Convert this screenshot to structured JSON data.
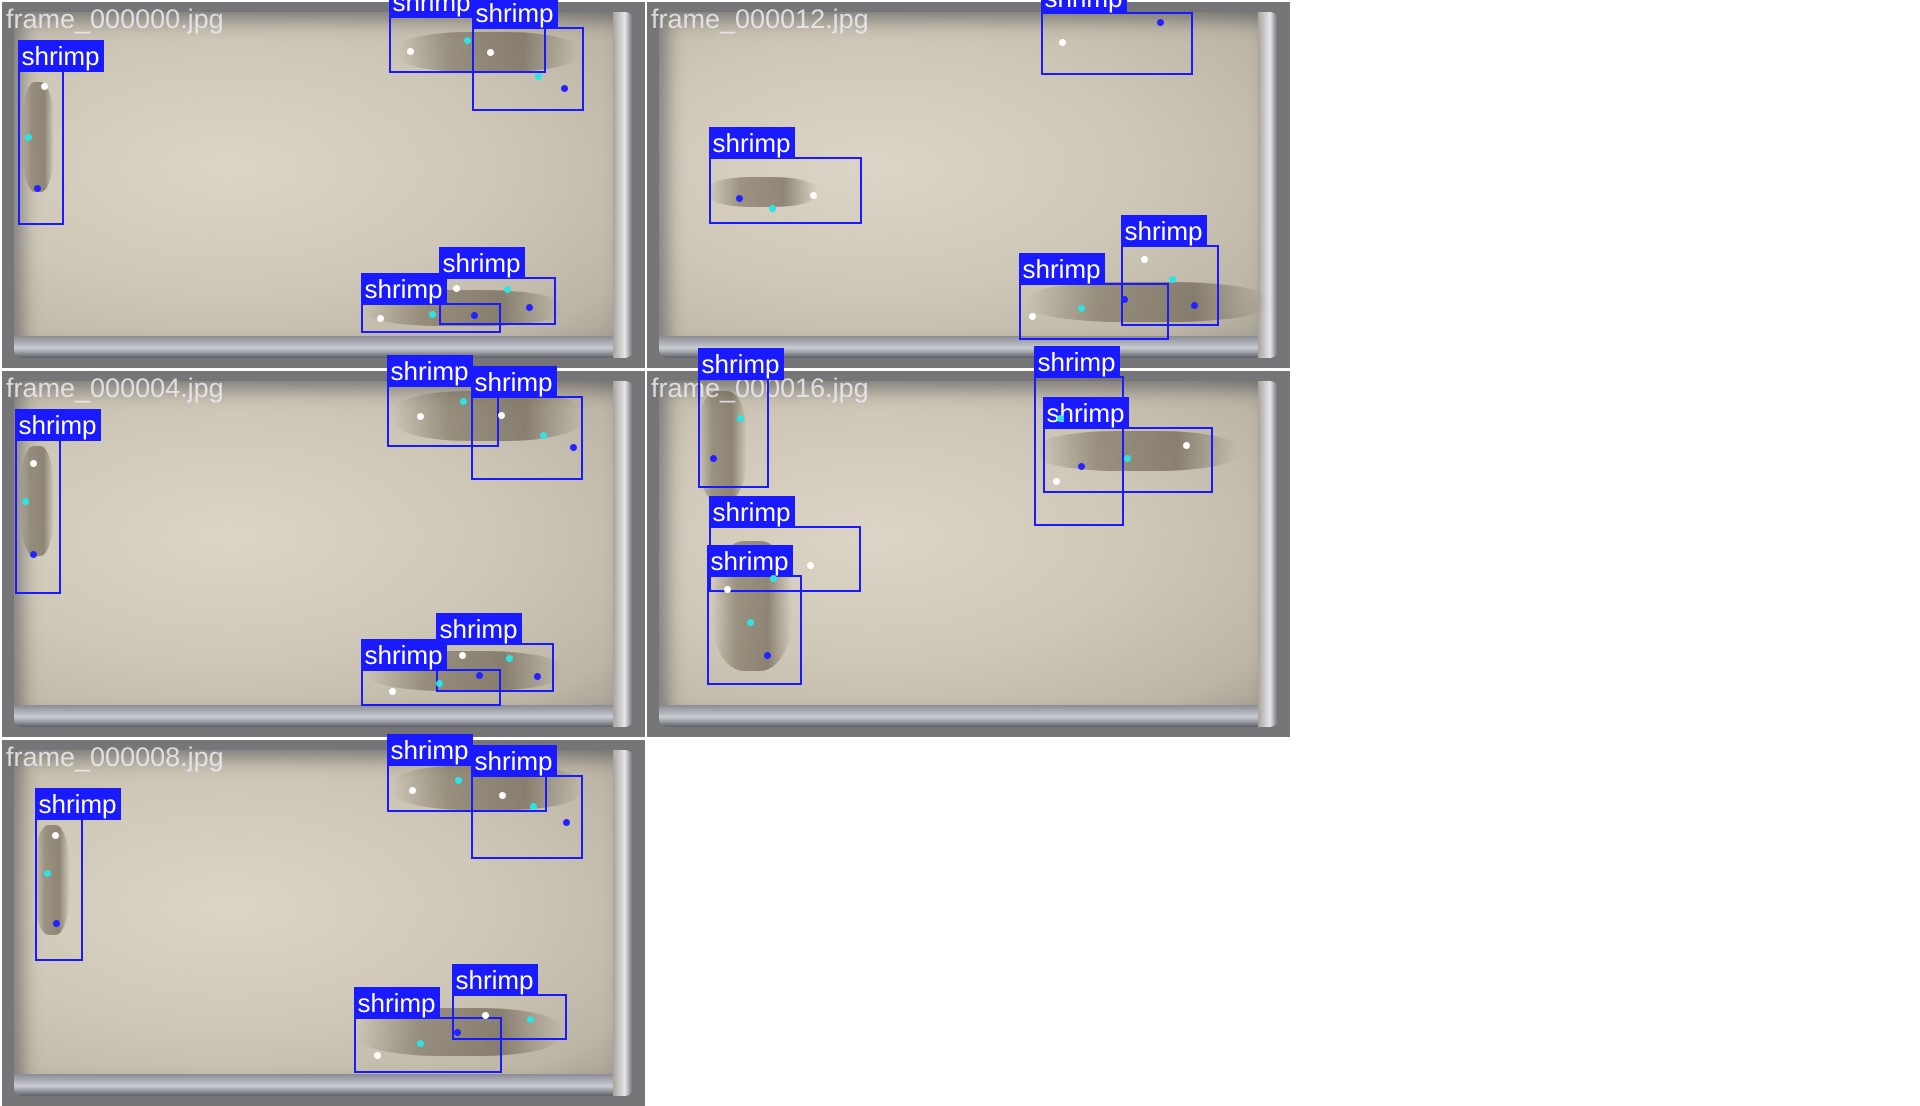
{
  "class_label": "shrimp",
  "keypoint_colors": {
    "white": "#ffffff",
    "cyan": "#2de3e3",
    "blue": "#2323ff"
  },
  "box_color": "#1a1aff",
  "frames": [
    {
      "name": "frame_000000.jpg"
    },
    {
      "name": "frame_000012.jpg"
    },
    {
      "name": "frame_000004.jpg"
    },
    {
      "name": "frame_000016.jpg"
    },
    {
      "name": "frame_000008.jpg"
    }
  ]
}
